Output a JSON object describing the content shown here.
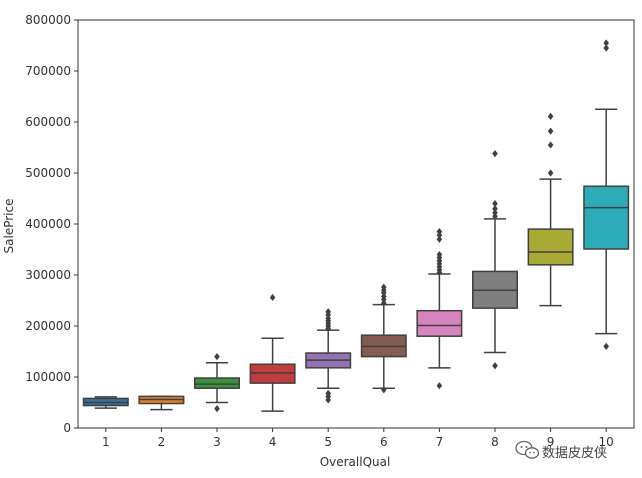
{
  "chart_data": {
    "type": "boxplot",
    "title": "",
    "xlabel": "OverallQual",
    "ylabel": "SalePrice",
    "ylim": [
      0,
      800000
    ],
    "yticks": [
      0,
      100000,
      200000,
      300000,
      400000,
      500000,
      600000,
      700000,
      800000
    ],
    "grid": false,
    "categories": [
      "1",
      "2",
      "3",
      "4",
      "5",
      "6",
      "7",
      "8",
      "9",
      "10"
    ],
    "boxes": [
      {
        "category": "1",
        "color": "#3a6f9a",
        "min": 39000,
        "q1": 44000,
        "median": 50000,
        "q3": 58000,
        "max": 61000,
        "outliers": []
      },
      {
        "category": "2",
        "color": "#e1812c",
        "min": 36000,
        "q1": 48000,
        "median": 56000,
        "q3": 62000,
        "max": 62000,
        "outliers": []
      },
      {
        "category": "3",
        "color": "#3a923a",
        "min": 50000,
        "q1": 78000,
        "median": 86000,
        "q3": 98000,
        "max": 128000,
        "outliers": [
          38000,
          140000
        ]
      },
      {
        "category": "4",
        "color": "#c03d3e",
        "min": 33000,
        "q1": 88000,
        "median": 108000,
        "q3": 125000,
        "max": 176000,
        "outliers": [
          256000
        ]
      },
      {
        "category": "5",
        "color": "#9372b2",
        "min": 78000,
        "q1": 118000,
        "median": 133000,
        "q3": 147000,
        "max": 192000,
        "outliers": [
          55000,
          62000,
          68000,
          195000,
          200000,
          205000,
          210000,
          215000,
          222000,
          228000
        ]
      },
      {
        "category": "6",
        "color": "#845b53",
        "min": 78000,
        "q1": 140000,
        "median": 160000,
        "q3": 182000,
        "max": 242000,
        "outliers": [
          75000,
          245000,
          252000,
          258000,
          265000,
          270000,
          276000
        ]
      },
      {
        "category": "7",
        "color": "#d684bd",
        "min": 118000,
        "q1": 180000,
        "median": 201000,
        "q3": 230000,
        "max": 302000,
        "outliers": [
          83000,
          305000,
          310000,
          316000,
          322000,
          328000,
          334000,
          340000,
          370000,
          378000,
          385000
        ]
      },
      {
        "category": "8",
        "color": "#7f7f7f",
        "min": 148000,
        "q1": 235000,
        "median": 270000,
        "q3": 307000,
        "max": 410000,
        "outliers": [
          122000,
          415000,
          422000,
          430000,
          440000,
          538000
        ]
      },
      {
        "category": "9",
        "color": "#a9aa35",
        "min": 240000,
        "q1": 320000,
        "median": 345000,
        "q3": 390000,
        "max": 488000,
        "outliers": [
          500000,
          555000,
          582000,
          611000
        ]
      },
      {
        "category": "10",
        "color": "#2eabb8",
        "min": 185000,
        "q1": 351000,
        "median": 432000,
        "q3": 474000,
        "max": 625000,
        "outliers": [
          160000,
          745000,
          755000
        ]
      }
    ]
  },
  "watermark": {
    "text": "数据皮皮侠",
    "icon": "wechat-icon"
  },
  "colors": {
    "line": "#404040",
    "axis": "#333333",
    "background": "#ffffff"
  }
}
